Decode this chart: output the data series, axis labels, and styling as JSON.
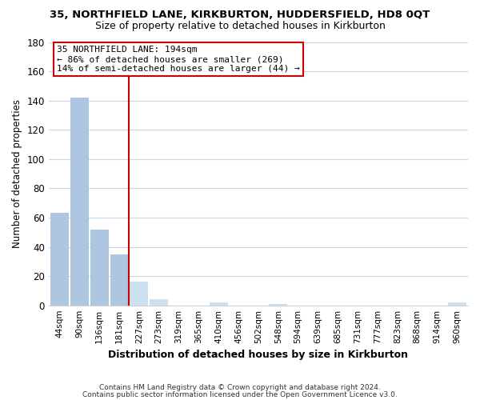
{
  "title": "35, NORTHFIELD LANE, KIRKBURTON, HUDDERSFIELD, HD8 0QT",
  "subtitle": "Size of property relative to detached houses in Kirkburton",
  "xlabel": "Distribution of detached houses by size in Kirkburton",
  "ylabel": "Number of detached properties",
  "bin_labels": [
    "44sqm",
    "90sqm",
    "136sqm",
    "181sqm",
    "227sqm",
    "273sqm",
    "319sqm",
    "365sqm",
    "410sqm",
    "456sqm",
    "502sqm",
    "548sqm",
    "594sqm",
    "639sqm",
    "685sqm",
    "731sqm",
    "777sqm",
    "823sqm",
    "868sqm",
    "914sqm",
    "960sqm"
  ],
  "bar_heights": [
    63,
    142,
    52,
    35,
    16,
    4,
    0,
    0,
    2,
    0,
    0,
    1,
    0,
    0,
    0,
    0,
    0,
    0,
    0,
    0,
    2
  ],
  "bar_color_left": "#aec6e0",
  "bar_color_right": "#cde0f0",
  "vline_color": "#cc0000",
  "annotation_title": "35 NORTHFIELD LANE: 194sqm",
  "annotation_line1": "← 86% of detached houses are smaller (269)",
  "annotation_line2": "14% of semi-detached houses are larger (44) →",
  "annotation_box_color": "#ffffff",
  "annotation_box_edgecolor": "#cc0000",
  "ylim": [
    0,
    180
  ],
  "yticks": [
    0,
    20,
    40,
    60,
    80,
    100,
    120,
    140,
    160,
    180
  ],
  "footer1": "Contains HM Land Registry data © Crown copyright and database right 2024.",
  "footer2": "Contains public sector information licensed under the Open Government Licence v3.0.",
  "background_color": "#ffffff",
  "grid_color": "#c8d8e8"
}
